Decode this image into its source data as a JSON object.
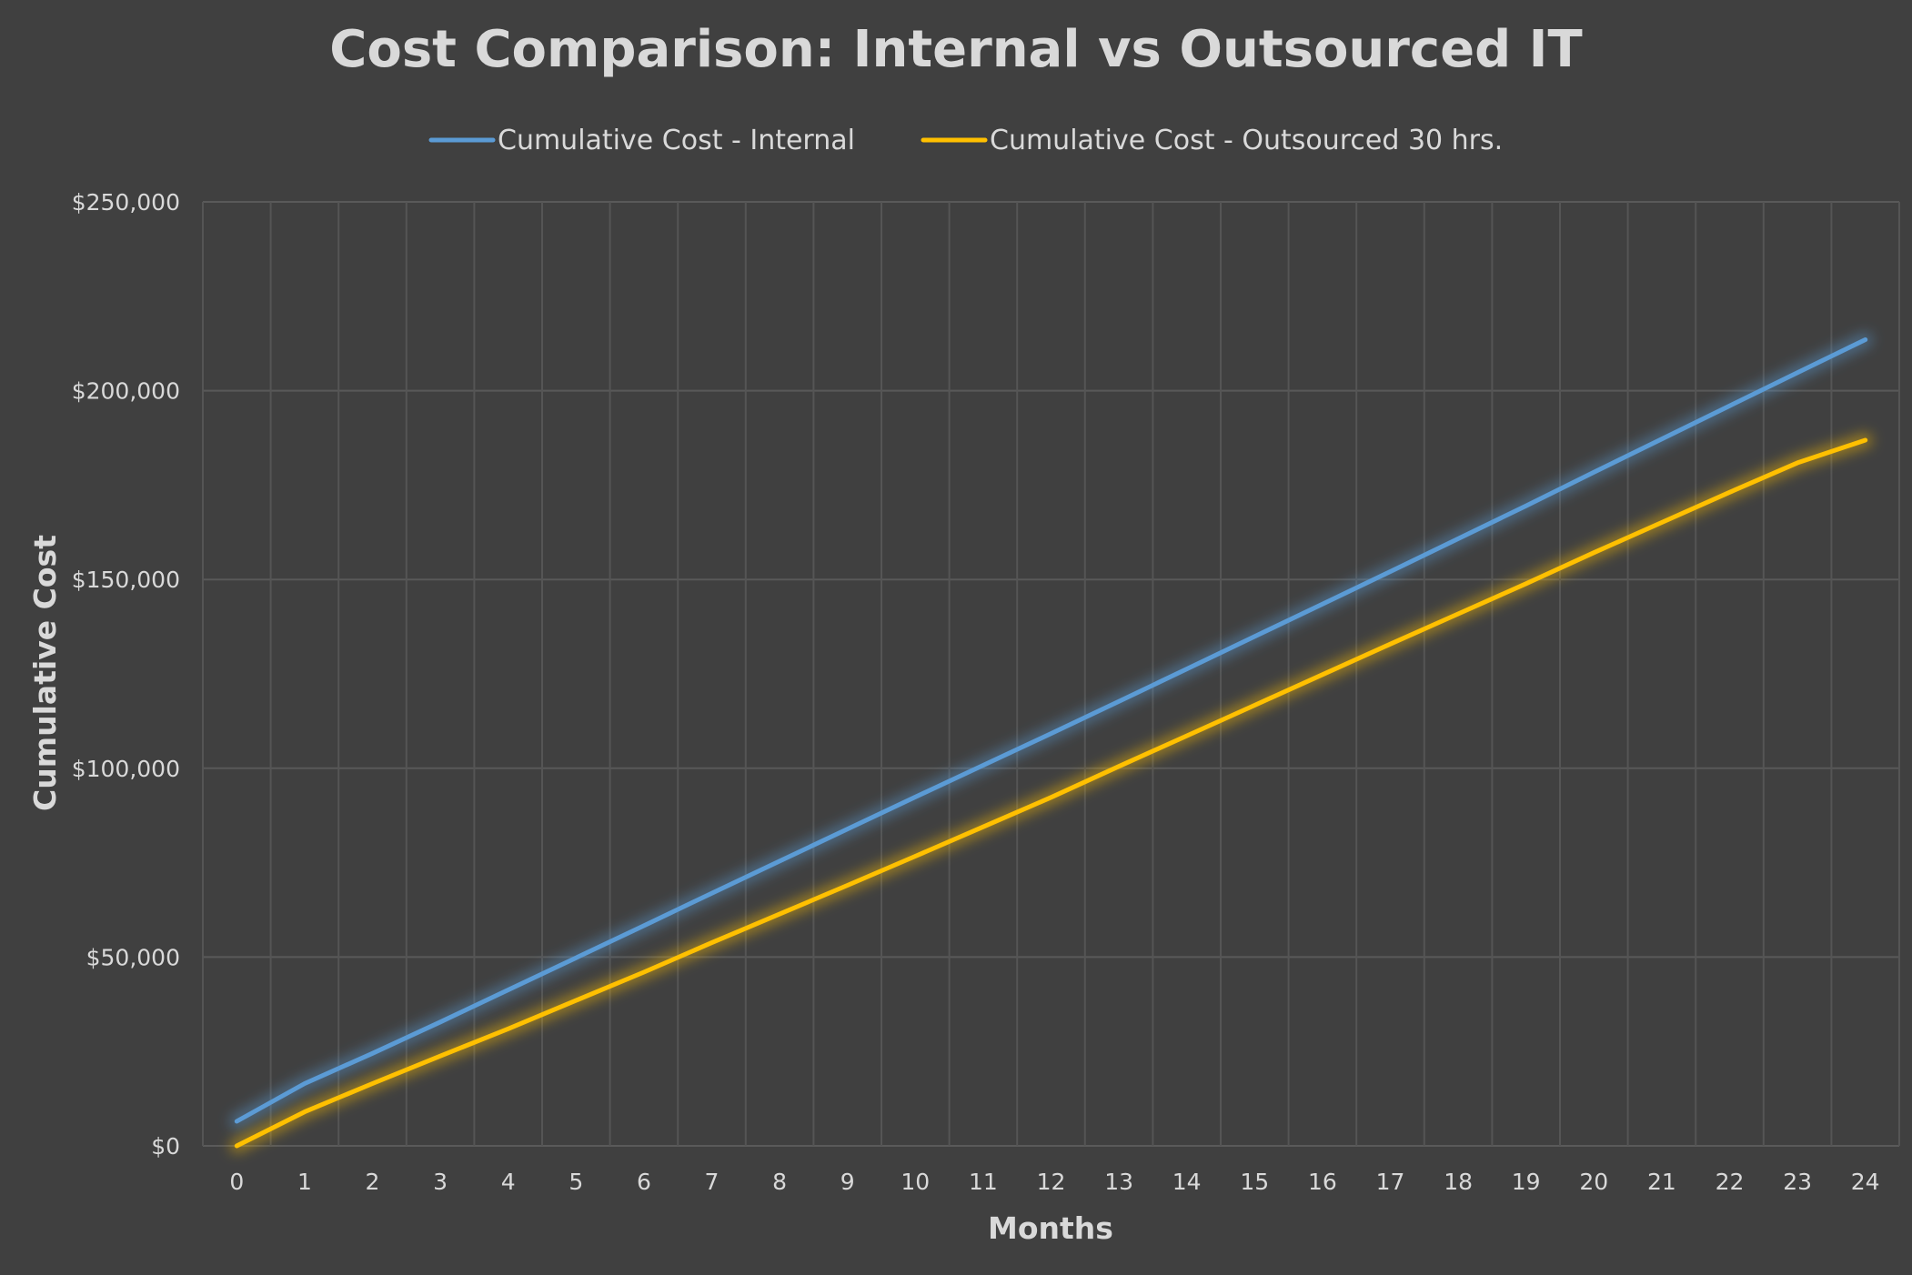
{
  "chart_data": {
    "type": "line",
    "title": "Cost Comparison: Internal vs Outsourced IT",
    "xlabel": "Months",
    "ylabel": "Cumulative Cost",
    "x": [
      0,
      1,
      2,
      3,
      4,
      5,
      6,
      7,
      8,
      9,
      10,
      11,
      12,
      13,
      14,
      15,
      16,
      17,
      18,
      19,
      20,
      21,
      22,
      23,
      24
    ],
    "x_tick_labels": [
      "0",
      "1",
      "2",
      "3",
      "4",
      "5",
      "6",
      "7",
      "8",
      "9",
      "10",
      "11",
      "12",
      "13",
      "14",
      "15",
      "16",
      "17",
      "18",
      "19",
      "20",
      "21",
      "22",
      "23",
      "24"
    ],
    "ylim": [
      0,
      250000
    ],
    "y_ticks": [
      0,
      50000,
      100000,
      150000,
      200000,
      250000
    ],
    "y_tick_labels": [
      "$0",
      "$50,000",
      "$100,000",
      "$150,000",
      "$200,000",
      "$250,000"
    ],
    "grid": true,
    "legend_position": "top",
    "series": [
      {
        "name": "Cumulative Cost - Internal",
        "color": "#5B9BD5",
        "values": [
          6500,
          16500,
          24500,
          32800,
          41300,
          49800,
          58300,
          66900,
          75400,
          83900,
          92400,
          100800,
          109200,
          117700,
          126300,
          134900,
          143500,
          152100,
          160800,
          169500,
          178400,
          187200,
          196000,
          204800,
          213500
        ]
      },
      {
        "name": "Cumulative Cost - Outsourced 30 hrs.",
        "color": "#FFC000",
        "values": [
          0,
          9000,
          16500,
          23800,
          31000,
          38500,
          46000,
          53800,
          61400,
          69000,
          76700,
          84500,
          92300,
          100500,
          108600,
          116700,
          124800,
          132900,
          140900,
          148900,
          157100,
          165100,
          173100,
          180900,
          186900
        ]
      }
    ]
  }
}
